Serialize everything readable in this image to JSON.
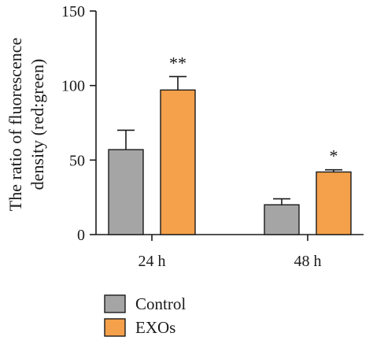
{
  "chart_data": {
    "type": "bar",
    "title": "",
    "ylabel_lines": [
      "The ratio of fluorescence",
      "density (red:green)"
    ],
    "xlabel": "",
    "ylim": [
      0,
      150
    ],
    "yticks": [
      0,
      50,
      100,
      150
    ],
    "categories": [
      "24 h",
      "48 h"
    ],
    "series": [
      {
        "name": "Control",
        "color": "#a5a5a5",
        "values": [
          57,
          20
        ],
        "errors": [
          13,
          4
        ]
      },
      {
        "name": "EXOs",
        "color": "#f5a04a",
        "values": [
          97,
          42
        ],
        "errors": [
          9,
          1.5
        ]
      }
    ],
    "annotations": [
      {
        "series": 1,
        "category": 0,
        "text": "**"
      },
      {
        "series": 1,
        "category": 1,
        "text": "*"
      }
    ],
    "legend_placement": "bottom-left",
    "error_bars": true,
    "grid": false
  }
}
